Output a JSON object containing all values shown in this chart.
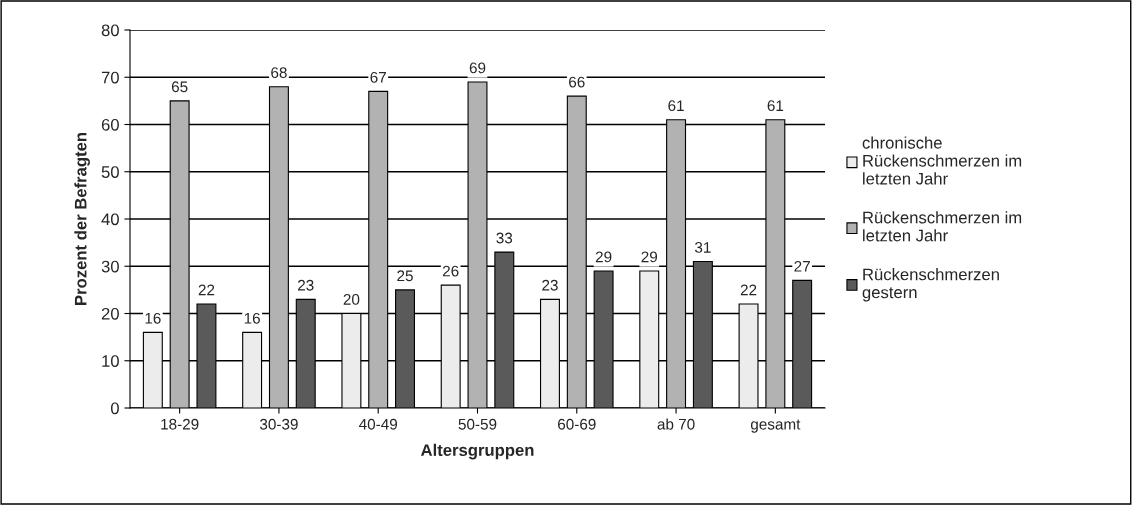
{
  "chart_data": {
    "type": "bar",
    "xlabel": "Altersgruppen",
    "ylabel": "Prozent der Befragten",
    "categories": [
      "18-29",
      "30-39",
      "40-49",
      "50-59",
      "60-69",
      "ab 70",
      "gesamt"
    ],
    "series": [
      {
        "name": "chronische Rückenschmerzen im letzten Jahr",
        "color": "#ececec",
        "values": [
          16,
          16,
          20,
          26,
          23,
          29,
          22
        ]
      },
      {
        "name": "Rückenschmerzen im letzten Jahr",
        "color": "#b2b2b2",
        "values": [
          65,
          68,
          67,
          69,
          66,
          61,
          61
        ]
      },
      {
        "name": "Rückenschmerzen gestern",
        "color": "#5a5a5a",
        "values": [
          22,
          23,
          25,
          33,
          29,
          31,
          27
        ]
      }
    ],
    "ylim": [
      0,
      80
    ],
    "yticks": [
      0,
      10,
      20,
      30,
      40,
      50,
      60,
      70,
      80
    ],
    "grid": "y",
    "legend": "right",
    "data_labels": true
  }
}
